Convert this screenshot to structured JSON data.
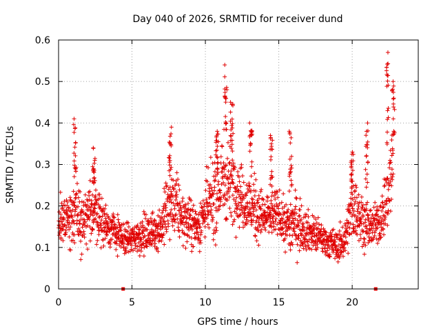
{
  "chart_data": {
    "type": "scatter",
    "title": "Day 040 of 2026, SRMTID for receiver dund",
    "xlabel": "GPS time / hours",
    "ylabel": "SRMTID / TECUs",
    "xlim": [
      0,
      24.5
    ],
    "ylim": [
      0,
      0.6
    ],
    "xticks": [
      0,
      5,
      10,
      15,
      20
    ],
    "xtick_labels": [
      "0",
      "5",
      "10",
      "15",
      "20"
    ],
    "yticks": [
      0,
      0.1,
      0.2,
      0.3,
      0.4,
      0.5,
      0.6
    ],
    "ytick_labels": [
      "0",
      "0.1",
      "0.2",
      "0.3",
      "0.4",
      "0.5",
      "0.6"
    ],
    "grid": true,
    "marker": "plus",
    "color": "#e00000",
    "series": [
      {
        "name": "SRMTID",
        "envelope": {
          "x": [
            0,
            0.5,
            1,
            1.2,
            1.5,
            2,
            2.5,
            3,
            3.5,
            4,
            4.5,
            5,
            5.5,
            6,
            6.5,
            7,
            7.5,
            8,
            8.5,
            9,
            9.5,
            10,
            10.5,
            11,
            11.3,
            11.7,
            12,
            12.5,
            13,
            13.5,
            14,
            14.5,
            15,
            15.5,
            16,
            16.5,
            17,
            17.5,
            18,
            18.5,
            19,
            19.5,
            20,
            20.5,
            21,
            21.5,
            22,
            22.5,
            22.8
          ],
          "median": [
            0.14,
            0.18,
            0.17,
            0.2,
            0.15,
            0.17,
            0.2,
            0.16,
            0.15,
            0.13,
            0.12,
            0.12,
            0.13,
            0.13,
            0.14,
            0.15,
            0.2,
            0.2,
            0.17,
            0.16,
            0.15,
            0.19,
            0.21,
            0.24,
            0.27,
            0.26,
            0.25,
            0.22,
            0.2,
            0.19,
            0.17,
            0.18,
            0.18,
            0.15,
            0.16,
            0.15,
            0.14,
            0.13,
            0.12,
            0.11,
            0.1,
            0.12,
            0.2,
            0.18,
            0.15,
            0.15,
            0.17,
            0.25,
            0.3
          ],
          "spread": [
            0.06,
            0.07,
            0.08,
            0.1,
            0.07,
            0.07,
            0.08,
            0.06,
            0.05,
            0.05,
            0.04,
            0.04,
            0.05,
            0.05,
            0.05,
            0.06,
            0.09,
            0.08,
            0.06,
            0.06,
            0.06,
            0.08,
            0.1,
            0.12,
            0.13,
            0.1,
            0.09,
            0.08,
            0.08,
            0.08,
            0.06,
            0.06,
            0.06,
            0.06,
            0.09,
            0.06,
            0.05,
            0.05,
            0.04,
            0.04,
            0.04,
            0.05,
            0.09,
            0.07,
            0.06,
            0.05,
            0.06,
            0.12,
            0.12
          ]
        },
        "peaks": [
          {
            "x": 1.1,
            "y": 0.41
          },
          {
            "x": 2.4,
            "y": 0.34
          },
          {
            "x": 7.6,
            "y": 0.39
          },
          {
            "x": 10.8,
            "y": 0.38
          },
          {
            "x": 11.4,
            "y": 0.54
          },
          {
            "x": 11.8,
            "y": 0.45
          },
          {
            "x": 13.1,
            "y": 0.4
          },
          {
            "x": 14.5,
            "y": 0.37
          },
          {
            "x": 15.8,
            "y": 0.38
          },
          {
            "x": 20.0,
            "y": 0.33
          },
          {
            "x": 21.0,
            "y": 0.4
          },
          {
            "x": 22.4,
            "y": 0.57
          },
          {
            "x": 22.8,
            "y": 0.5
          }
        ]
      }
    ],
    "gap_markers": [
      {
        "x": 4.4,
        "y": 0
      },
      {
        "x": 21.6,
        "y": 0
      }
    ]
  }
}
